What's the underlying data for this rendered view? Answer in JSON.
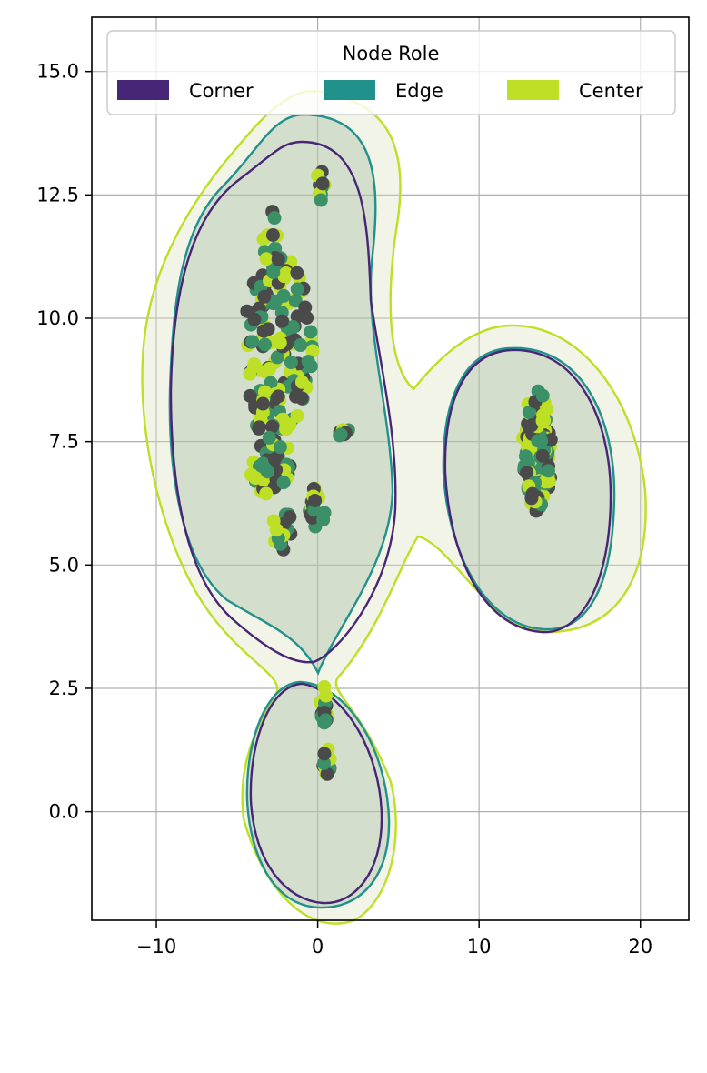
{
  "chart_data": {
    "type": "scatter",
    "title": "",
    "xlabel": "",
    "ylabel": "",
    "xlim": [
      -14,
      23
    ],
    "ylim": [
      -2.2,
      16.1
    ],
    "grid": true,
    "x_ticks": [
      -10,
      0,
      10,
      20
    ],
    "x_tick_labels": [
      "−10",
      "0",
      "10",
      "20"
    ],
    "y_ticks": [
      0.0,
      2.5,
      5.0,
      7.5,
      10.0,
      12.5,
      15.0
    ],
    "y_tick_labels": [
      "0.0",
      "2.5",
      "5.0",
      "7.5",
      "10.0",
      "12.5",
      "15.0"
    ],
    "legend": {
      "title": "Node Role",
      "placement": "top-center",
      "entries": [
        {
          "label": "Corner",
          "color": "#482677"
        },
        {
          "label": "Edge",
          "color": "#21918c"
        },
        {
          "label": "Center",
          "color": "#bddf26"
        }
      ]
    },
    "colors": {
      "corner": "#482677",
      "edge": "#21918c",
      "center": "#bddf26",
      "point_dark": "#4a4a4a",
      "point_edge": "#3b9068",
      "fill": "#9fb59b",
      "outer_fill": "#d9dfbe"
    },
    "clusters": [
      {
        "name": "upper-left",
        "x_range": [
          -5,
          2
        ],
        "y_range": [
          5.3,
          13.0
        ]
      },
      {
        "name": "lower",
        "x_range": [
          0,
          1
        ],
        "y_range": [
          0.7,
          2.7
        ]
      },
      {
        "name": "right",
        "x_range": [
          12,
          15
        ],
        "y_range": [
          6.0,
          8.8
        ]
      }
    ]
  }
}
